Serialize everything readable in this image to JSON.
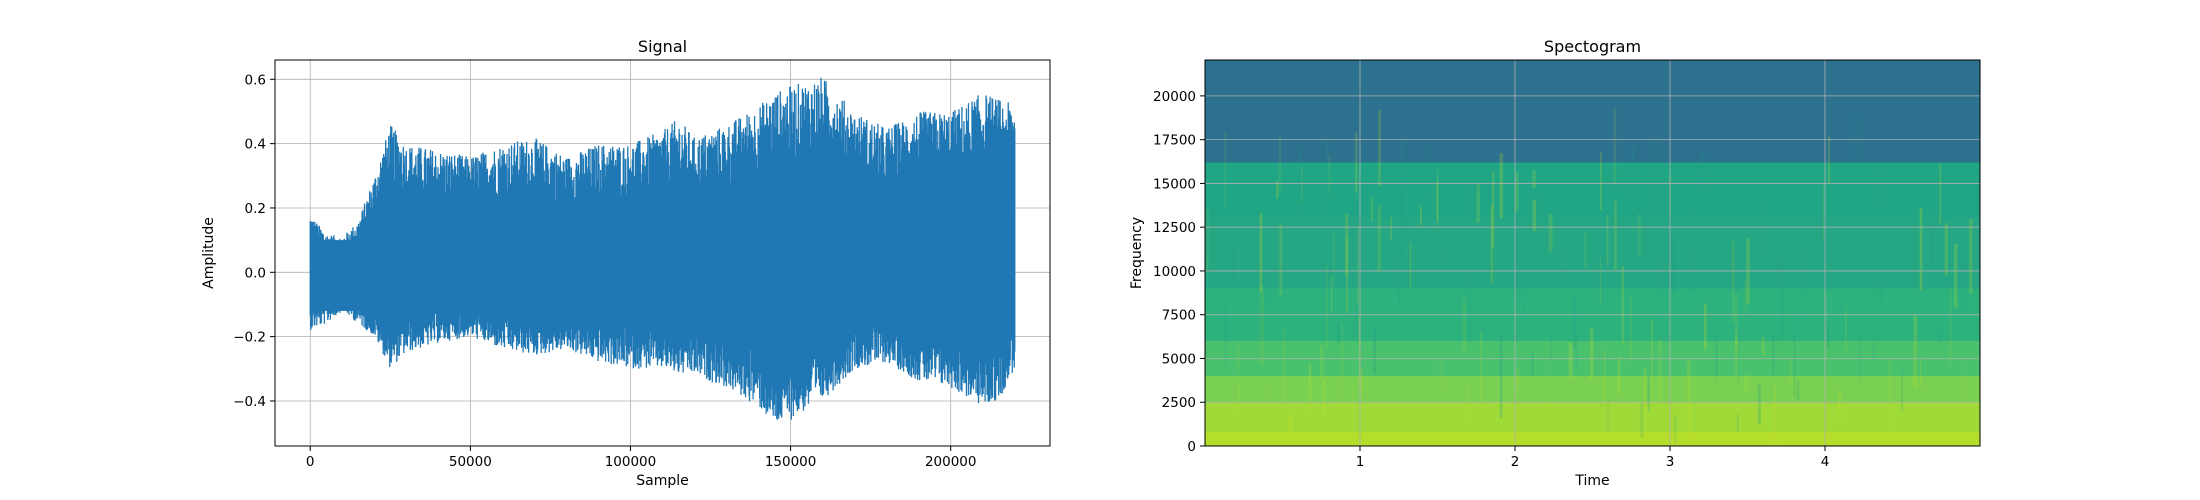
{
  "chart_data": [
    {
      "type": "line",
      "title": "Signal",
      "xlabel": "Sample",
      "ylabel": "Amplitude",
      "xlim": [
        -11000,
        231000
      ],
      "ylim": [
        -0.54,
        0.66
      ],
      "xticks": [
        0,
        50000,
        100000,
        150000,
        200000
      ],
      "yticks": [
        -0.4,
        -0.2,
        0.0,
        0.2,
        0.4,
        0.6
      ],
      "xtick_labels": [
        "0",
        "50000",
        "100000",
        "150000",
        "200000"
      ],
      "ytick_labels": [
        "−0.4",
        "−0.2",
        "0.0",
        "0.2",
        "0.4",
        "0.6"
      ],
      "grid": true,
      "color": "#1f77b4",
      "envelope": {
        "x": [
          0,
          5000,
          10000,
          15000,
          20000,
          25000,
          30000,
          40000,
          50000,
          60000,
          70000,
          80000,
          90000,
          100000,
          110000,
          115000,
          120000,
          130000,
          140000,
          145000,
          150000,
          160000,
          170000,
          180000,
          190000,
          200000,
          210000,
          215000,
          220000
        ],
        "upper": [
          0.18,
          0.12,
          0.11,
          0.16,
          0.3,
          0.46,
          0.4,
          0.38,
          0.36,
          0.4,
          0.42,
          0.36,
          0.4,
          0.4,
          0.44,
          0.48,
          0.42,
          0.46,
          0.52,
          0.56,
          0.58,
          0.61,
          0.5,
          0.45,
          0.5,
          0.5,
          0.56,
          0.54,
          0.52
        ],
        "lower": [
          -0.18,
          -0.16,
          -0.12,
          -0.16,
          -0.2,
          -0.3,
          -0.25,
          -0.22,
          -0.2,
          -0.24,
          -0.26,
          -0.24,
          -0.28,
          -0.3,
          -0.3,
          -0.32,
          -0.32,
          -0.36,
          -0.42,
          -0.48,
          -0.46,
          -0.4,
          -0.3,
          -0.28,
          -0.34,
          -0.36,
          -0.42,
          -0.4,
          -0.3
        ]
      }
    },
    {
      "type": "heatmap",
      "title": "Spectogram",
      "xlabel": "Time",
      "ylabel": "Frequency",
      "xlim": [
        0.0,
        5.0
      ],
      "ylim": [
        0,
        22050
      ],
      "xticks": [
        1,
        2,
        3,
        4
      ],
      "yticks": [
        0,
        2500,
        5000,
        7500,
        10000,
        12500,
        15000,
        17500,
        20000
      ],
      "xtick_labels": [
        "1",
        "2",
        "3",
        "4"
      ],
      "ytick_labels": [
        "0",
        "2500",
        "5000",
        "7500",
        "10000",
        "12500",
        "15000",
        "17500",
        "20000"
      ],
      "grid": true,
      "colormap": "viridis",
      "bands": [
        {
          "from": 0,
          "to": 800,
          "color": "#b5de2b"
        },
        {
          "from": 800,
          "to": 2500,
          "color": "#a0da39"
        },
        {
          "from": 2500,
          "to": 4000,
          "color": "#7ad151"
        },
        {
          "from": 4000,
          "to": 6000,
          "color": "#4ac16d"
        },
        {
          "from": 6000,
          "to": 9000,
          "color": "#2db27d"
        },
        {
          "from": 9000,
          "to": 13000,
          "color": "#26a784"
        },
        {
          "from": 13000,
          "to": 16200,
          "color": "#21a685"
        },
        {
          "from": 16200,
          "to": 22050,
          "color": "#2c728e"
        }
      ]
    }
  ]
}
